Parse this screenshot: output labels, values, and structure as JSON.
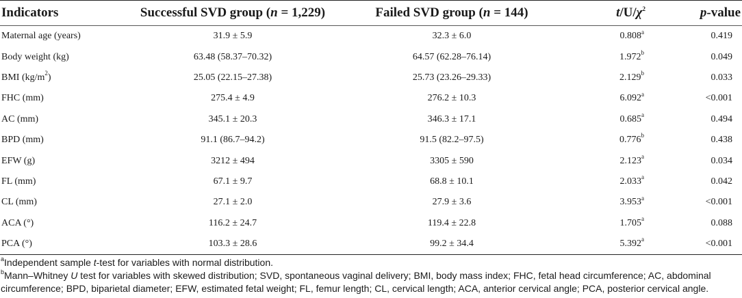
{
  "headers": {
    "indicators": "Indicators",
    "successful": "Successful SVD group",
    "successful_n_label": "n",
    "successful_n_value": " = 1,229)",
    "failed": "Failed SVD group",
    "failed_n_label": "n",
    "failed_n_value": " = 144)",
    "stat_t": "t",
    "stat_u": "/U/",
    "stat_chi": "χ",
    "stat_chi_sup": "2",
    "p_label": "p",
    "p_suffix": "-value"
  },
  "rows": [
    {
      "indicator": "Maternal age (years)",
      "indicator_sup": "",
      "indicator_tail": "",
      "successful": "31.9 ± 5.9",
      "failed": "32.3 ± 6.0",
      "stat": "0.808",
      "stat_sup": "a",
      "p": "0.419"
    },
    {
      "indicator": "Body weight (kg)",
      "indicator_sup": "",
      "indicator_tail": "",
      "successful": "63.48 (58.37–70.32)",
      "failed": "64.57 (62.28–76.14)",
      "stat": "1.972",
      "stat_sup": "b",
      "p": "0.049"
    },
    {
      "indicator": "BMI (kg/m",
      "indicator_sup": "2",
      "indicator_tail": ")",
      "successful": "25.05 (22.15–27.38)",
      "failed": "25.73 (23.26–29.33)",
      "stat": "2.129",
      "stat_sup": "b",
      "p": "0.033"
    },
    {
      "indicator": "FHC (mm)",
      "indicator_sup": "",
      "indicator_tail": "",
      "successful": "275.4 ± 4.9",
      "failed": "276.2 ± 10.3",
      "stat": "6.092",
      "stat_sup": "a",
      "p": "<0.001"
    },
    {
      "indicator": "AC (mm)",
      "indicator_sup": "",
      "indicator_tail": "",
      "successful": "345.1 ± 20.3",
      "failed": "346.3 ± 17.1",
      "stat": "0.685",
      "stat_sup": "a",
      "p": "0.494"
    },
    {
      "indicator": "BPD (mm)",
      "indicator_sup": "",
      "indicator_tail": "",
      "successful": "91.1 (86.7–94.2)",
      "failed": "91.5 (82.2–97.5)",
      "stat": "0.776",
      "stat_sup": "b",
      "p": "0.438"
    },
    {
      "indicator": "EFW (g)",
      "indicator_sup": "",
      "indicator_tail": "",
      "successful": "3212 ± 494",
      "failed": "3305 ± 590",
      "stat": "2.123",
      "stat_sup": "a",
      "p": "0.034"
    },
    {
      "indicator": "FL (mm)",
      "indicator_sup": "",
      "indicator_tail": "",
      "successful": "67.1 ± 9.7",
      "failed": "68.8 ± 10.1",
      "stat": "2.033",
      "stat_sup": "a",
      "p": "0.042"
    },
    {
      "indicator": "CL (mm)",
      "indicator_sup": "",
      "indicator_tail": "",
      "successful": "27.1 ± 2.0",
      "failed": "27.9 ± 3.6",
      "stat": "3.953",
      "stat_sup": "a",
      "p": "<0.001"
    },
    {
      "indicator": "ACA (°)",
      "indicator_sup": "",
      "indicator_tail": "",
      "successful": "116.2 ± 24.7",
      "failed": "119.4 ± 22.8",
      "stat": "1.705",
      "stat_sup": "a",
      "p": "0.088"
    },
    {
      "indicator": "PCA (°)",
      "indicator_sup": "",
      "indicator_tail": "",
      "successful": "103.3 ± 28.6",
      "failed": "99.2 ± 34.4",
      "stat": "5.392",
      "stat_sup": "a",
      "p": "<0.001"
    }
  ],
  "footnotes": {
    "a_mark": "a",
    "a_pre": "Independent sample ",
    "a_italic": "t",
    "a_post": "-test for variables with normal distribution.",
    "b_mark": "b",
    "b_pre": "Mann–Whitney ",
    "b_italic": "U",
    "b_line1_post": " test for variables with skewed distribution; SVD, spontaneous vaginal delivery; BMI, body mass index; FHC, fetal head circumference; AC, abdominal",
    "b_line2": "circumference; BPD, biparietal diameter; EFW, estimated fetal weight; FL, femur length; CL, cervical length; ACA, anterior cervical angle; PCA, posterior cervical angle."
  }
}
